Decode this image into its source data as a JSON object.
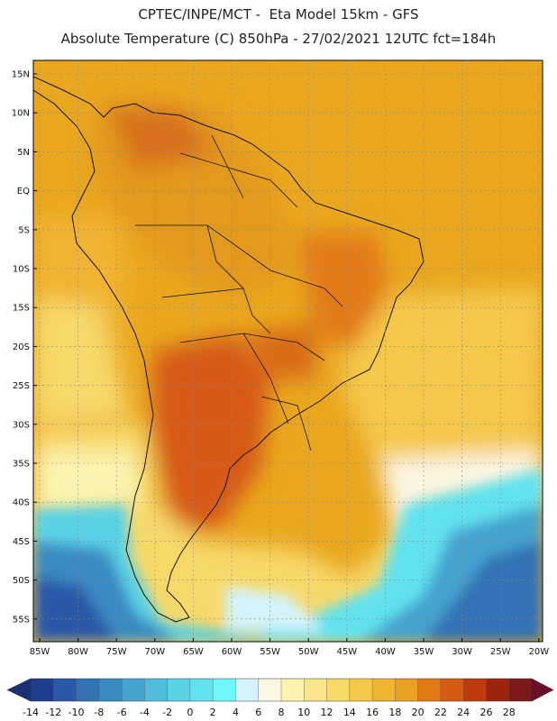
{
  "header": {
    "line1": "CPTEC/INPE/MCT -  Eta Model 15km - GFS",
    "line2": "Absolute Temperature (C) 850hPa - 27/02/2021 12UTC fct=184h"
  },
  "map": {
    "lat_labels": [
      "15N",
      "10N",
      "5N",
      "EQ",
      "5S",
      "10S",
      "15S",
      "20S",
      "25S",
      "30S",
      "35S",
      "40S",
      "45S",
      "50S",
      "55S"
    ],
    "lon_labels": [
      "85W",
      "80W",
      "75W",
      "70W",
      "65W",
      "60W",
      "55W",
      "50W",
      "45W",
      "40W",
      "35W",
      "30W",
      "25W",
      "20W"
    ],
    "background_color": "#e9a71f"
  },
  "colorbar": {
    "values": [
      "-14",
      "-12",
      "-10",
      "-8",
      "-6",
      "-4",
      "-2",
      "0",
      "2",
      "4",
      "6",
      "8",
      "10",
      "12",
      "14",
      "16",
      "18",
      "20",
      "22",
      "24",
      "26",
      "28"
    ],
    "colors": [
      "#1f3d8f",
      "#2a58a6",
      "#3372b5",
      "#3a8ac2",
      "#45a3cf",
      "#4fbcdb",
      "#5ad2e6",
      "#62e2ef",
      "#6ff7f9",
      "#d4f3fb",
      "#fbf6e3",
      "#fbf4b0",
      "#f9e58a",
      "#f7d96a",
      "#f4c84b",
      "#f1b431",
      "#eaa020",
      "#e27a16",
      "#d65a12",
      "#bf3b0f",
      "#9c240f",
      "#7c1a1a"
    ],
    "low_arrow_color": "#1b2f73",
    "high_arrow_color": "#6b0f2a"
  }
}
